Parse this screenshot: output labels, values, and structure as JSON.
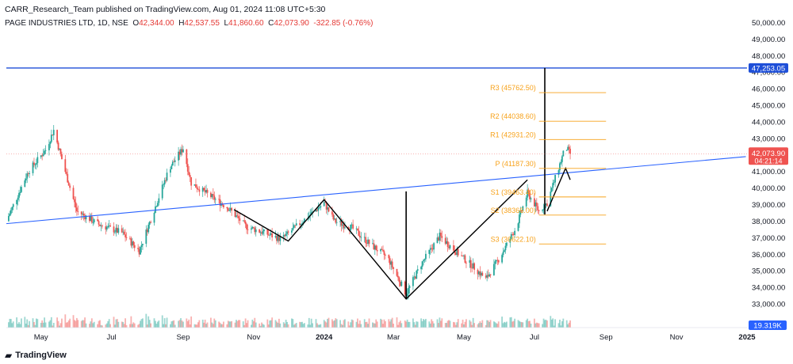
{
  "header": {
    "published": "CARR_Research_Team published on TradingView.com, Aug 01, 2024 11:08 UTC+5:30",
    "symbol": "PAGE INDUSTRIES LTD, 1D, NSE",
    "open_label": "O",
    "open": "42,344.00",
    "high_label": "H",
    "high": "42,537.55",
    "low_label": "L",
    "low": "41,860.60",
    "close_label": "C",
    "close": "42,073.90",
    "change": "-322.85 (-0.76%)"
  },
  "footer": {
    "logo_text": "TradingView"
  },
  "colors": {
    "up": "#26a69a",
    "down": "#ef5350",
    "trend": "#2962ff",
    "pivot": "#f7a21b",
    "pattern": "#000000",
    "resistance": "#1e4fd8"
  },
  "chart_data": {
    "type": "candlestick",
    "y_axis_ticks": [
      "50,000.00",
      "49,000.00",
      "48,000.00",
      "47,000.00",
      "46,000.00",
      "45,000.00",
      "44,000.00",
      "43,000.00",
      "42,000.00",
      "41,000.00",
      "40,000.00",
      "39,000.00",
      "38,000.00",
      "37,000.00",
      "36,000.00",
      "35,000.00",
      "34,000.00",
      "33,000.00"
    ],
    "y_range": [
      32000,
      50500
    ],
    "x_axis_ticks": [
      "May",
      "Jul",
      "Sep",
      "Nov",
      "2024",
      "Mar",
      "May",
      "Jul",
      "Sep",
      "Nov",
      "2025"
    ],
    "price_label": {
      "value": "42,073.90",
      "countdown": "04:21:14"
    },
    "resistance_label": "47,253.05",
    "volume_label": "19.319K",
    "resistance_level": 47253.05,
    "pivots": [
      {
        "label": "R3 (45762.50)",
        "value": 45762.5
      },
      {
        "label": "R2 (44038.60)",
        "value": 44038.6
      },
      {
        "label": "R1 (42931.20)",
        "value": 42931.2
      },
      {
        "label": "P (41187.30)",
        "value": 41187.3
      },
      {
        "label": "S1 (39463.40)",
        "value": 39463.4
      },
      {
        "label": "S2 (38366.00)",
        "value": 38366.0
      },
      {
        "label": "S3 (36622.10)",
        "value": 36622.1
      }
    ],
    "trendline": {
      "start": {
        "date": "2023-04-01",
        "value": 37850
      },
      "end": {
        "date": "2024-12-31",
        "value": 41900
      }
    },
    "pattern_lines": [
      {
        "date": "2023-10-15",
        "value": 38700
      },
      {
        "date": "2023-12-01",
        "value": 36800
      },
      {
        "date": "2024-01-01",
        "value": 39300
      },
      {
        "date": "2024-03-12",
        "value": 33300
      },
      {
        "date": "2024-06-25",
        "value": 40500
      }
    ],
    "vertical_lines": [
      {
        "date": "2024-03-12",
        "from": 33300,
        "to": 39800
      },
      {
        "date": "2024-07-10",
        "from": 38400,
        "to": 47253.05
      }
    ],
    "price_path": [
      {
        "date": "2023-04-01",
        "value": 38000
      },
      {
        "date": "2023-04-20",
        "value": 41000
      },
      {
        "date": "2023-05-05",
        "value": 42300
      },
      {
        "date": "2023-05-12",
        "value": 43500
      },
      {
        "date": "2023-05-22",
        "value": 41000
      },
      {
        "date": "2023-06-01",
        "value": 38600
      },
      {
        "date": "2023-06-20",
        "value": 37800
      },
      {
        "date": "2023-07-10",
        "value": 37300
      },
      {
        "date": "2023-07-25",
        "value": 36200
      },
      {
        "date": "2023-08-05",
        "value": 38300
      },
      {
        "date": "2023-08-20",
        "value": 41200
      },
      {
        "date": "2023-09-01",
        "value": 42400
      },
      {
        "date": "2023-09-08",
        "value": 40300
      },
      {
        "date": "2023-09-25",
        "value": 39500
      },
      {
        "date": "2023-10-10",
        "value": 38800
      },
      {
        "date": "2023-10-25",
        "value": 37700
      },
      {
        "date": "2023-11-10",
        "value": 37300
      },
      {
        "date": "2023-11-25",
        "value": 36900
      },
      {
        "date": "2023-12-10",
        "value": 37800
      },
      {
        "date": "2024-01-01",
        "value": 39100
      },
      {
        "date": "2024-01-10",
        "value": 38000
      },
      {
        "date": "2024-01-25",
        "value": 37600
      },
      {
        "date": "2024-02-10",
        "value": 36600
      },
      {
        "date": "2024-02-25",
        "value": 35800
      },
      {
        "date": "2024-03-12",
        "value": 33600
      },
      {
        "date": "2024-03-25",
        "value": 35400
      },
      {
        "date": "2024-04-10",
        "value": 37100
      },
      {
        "date": "2024-04-25",
        "value": 36100
      },
      {
        "date": "2024-05-10",
        "value": 35200
      },
      {
        "date": "2024-05-20",
        "value": 34500
      },
      {
        "date": "2024-06-01",
        "value": 35800
      },
      {
        "date": "2024-06-15",
        "value": 37600
      },
      {
        "date": "2024-06-25",
        "value": 39700
      },
      {
        "date": "2024-07-05",
        "value": 38600
      },
      {
        "date": "2024-07-12",
        "value": 39100
      },
      {
        "date": "2024-07-20",
        "value": 40800
      },
      {
        "date": "2024-07-28",
        "value": 42500
      },
      {
        "date": "2024-08-01",
        "value": 42074
      }
    ]
  }
}
